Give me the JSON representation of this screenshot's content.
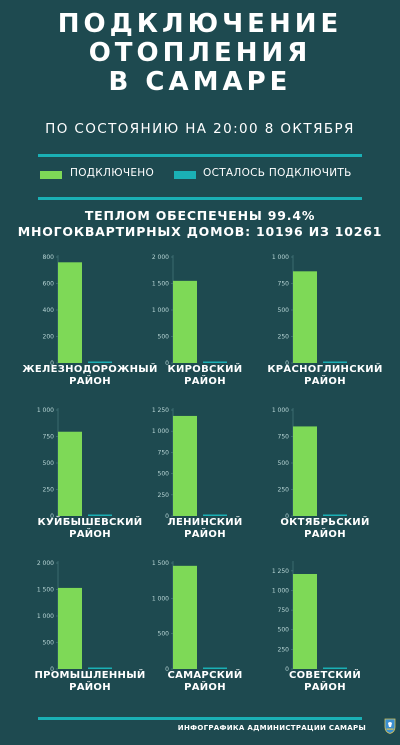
{
  "header": {
    "title_lines": [
      "ПОДКЛЮЧЕНИЕ",
      "ОТОПЛЕНИЯ",
      "В САМАРЕ"
    ],
    "subtitle": "ПО СОСТОЯНИЮ НА 20:00 8 ОКТЯБРЯ"
  },
  "legend": {
    "connected_label": "ПОДКЛЮЧЕНО",
    "remaining_label": "ОСТАЛОСЬ ПОДКЛЮЧИТЬ"
  },
  "summary": {
    "line1": "ТЕПЛОМ ОБЕСПЕЧЕНЫ 99.4%",
    "line2": "МНОГОКВАРТИРНЫХ ДОМОВ: 10196 ИЗ 10261"
  },
  "colors": {
    "background": "#1e4a50",
    "connected": "#7ed957",
    "remaining": "#1ab0b5"
  },
  "chart_data": [
    {
      "type": "bar",
      "district_lines": [
        "ЖЕЛЕЗНОДОРОЖНЫЙ",
        "РАЙОН"
      ],
      "categories": [
        "ПОДКЛЮЧЕНО",
        "ОСТАЛОСЬ ПОДКЛЮЧИТЬ"
      ],
      "values": [
        760,
        1
      ],
      "ylim": [
        0,
        800
      ],
      "yticks": [
        0,
        200,
        400,
        600,
        800
      ],
      "ytick_labels": [
        "0",
        "200",
        "400",
        "600",
        "800"
      ]
    },
    {
      "type": "bar",
      "district_lines": [
        "КИРОВСКИЙ",
        "РАЙОН"
      ],
      "categories": [
        "ПОДКЛЮЧЕНО",
        "ОСТАЛОСЬ ПОДКЛЮЧИТЬ"
      ],
      "values": [
        1550,
        25
      ],
      "ylim": [
        0,
        2000
      ],
      "yticks": [
        0,
        500,
        1000,
        1500,
        2000
      ],
      "ytick_labels": [
        "0",
        "500",
        "1 000",
        "1 500",
        "2 000"
      ]
    },
    {
      "type": "bar",
      "district_lines": [
        "КРАСНОГЛИНСКИЙ",
        "РАЙОН"
      ],
      "categories": [
        "ПОДКЛЮЧЕНО",
        "ОСТАЛОСЬ ПОДКЛЮЧИТЬ"
      ],
      "values": [
        865,
        1
      ],
      "ylim": [
        0,
        1000
      ],
      "yticks": [
        0,
        250,
        500,
        750,
        1000
      ],
      "ytick_labels": [
        "0",
        "250",
        "500",
        "750",
        "1 000"
      ]
    },
    {
      "type": "bar",
      "district_lines": [
        "КУЙБЫШЕВСКИЙ",
        "РАЙОН"
      ],
      "categories": [
        "ПОДКЛЮЧЕНО",
        "ОСТАЛОСЬ ПОДКЛЮЧИТЬ"
      ],
      "values": [
        795,
        1
      ],
      "ylim": [
        0,
        1000
      ],
      "yticks": [
        0,
        250,
        500,
        750,
        1000
      ],
      "ytick_labels": [
        "0",
        "250",
        "500",
        "750",
        "1 000"
      ]
    },
    {
      "type": "bar",
      "district_lines": [
        "ЛЕНИНСКИЙ",
        "РАЙОН"
      ],
      "categories": [
        "ПОДКЛЮЧЕНО",
        "ОСТАЛОСЬ ПОДКЛЮЧИТЬ"
      ],
      "values": [
        1180,
        1
      ],
      "ylim": [
        0,
        1250
      ],
      "yticks": [
        0,
        250,
        500,
        750,
        1000,
        1250
      ],
      "ytick_labels": [
        "0",
        "250",
        "500",
        "750",
        "1 000",
        "1 250"
      ]
    },
    {
      "type": "bar",
      "district_lines": [
        "ОКТЯБРЬСКИЙ",
        "РАЙОН"
      ],
      "categories": [
        "ПОДКЛЮЧЕНО",
        "ОСТАЛОСЬ ПОДКЛЮЧИТЬ"
      ],
      "values": [
        845,
        8
      ],
      "ylim": [
        0,
        1000
      ],
      "yticks": [
        0,
        250,
        500,
        750,
        1000
      ],
      "ytick_labels": [
        "0",
        "250",
        "500",
        "750",
        "1 000"
      ]
    },
    {
      "type": "bar",
      "district_lines": [
        "ПРОМЫШЛЕННЫЙ",
        "РАЙОН"
      ],
      "categories": [
        "ПОДКЛЮЧЕНО",
        "ОСТАЛОСЬ ПОДКЛЮЧИТЬ"
      ],
      "values": [
        1530,
        18
      ],
      "ylim": [
        0,
        2000
      ],
      "yticks": [
        0,
        500,
        1000,
        1500,
        2000
      ],
      "ytick_labels": [
        "0",
        "500",
        "1 000",
        "1 500",
        "2 000"
      ]
    },
    {
      "type": "bar",
      "district_lines": [
        "САМАРСКИЙ",
        "РАЙОН"
      ],
      "categories": [
        "ПОДКЛЮЧЕНО",
        "ОСТАЛОСЬ ПОДКЛЮЧИТЬ"
      ],
      "values": [
        1460,
        1
      ],
      "ylim": [
        0,
        1500
      ],
      "yticks": [
        0,
        500,
        1000,
        1500
      ],
      "ytick_labels": [
        "0",
        "500",
        "1 000",
        "1 500"
      ]
    },
    {
      "type": "bar",
      "district_lines": [
        "СОВЕТСКИЙ",
        "РАЙОН"
      ],
      "categories": [
        "ПОДКЛЮЧЕНО",
        "ОСТАЛОСЬ ПОДКЛЮЧИТЬ"
      ],
      "values": [
        1210,
        10
      ],
      "ylim": [
        0,
        1350
      ],
      "yticks": [
        0,
        250,
        500,
        750,
        1000,
        1250
      ],
      "ytick_labels": [
        "0",
        "250",
        "500",
        "750",
        "1 000",
        "1 250"
      ]
    }
  ],
  "footer": {
    "credit": "ИНФОГРАФИКА АДМИНИСТРАЦИИ САМАРЫ",
    "crest_icon": "samara-coat-of-arms-icon"
  }
}
